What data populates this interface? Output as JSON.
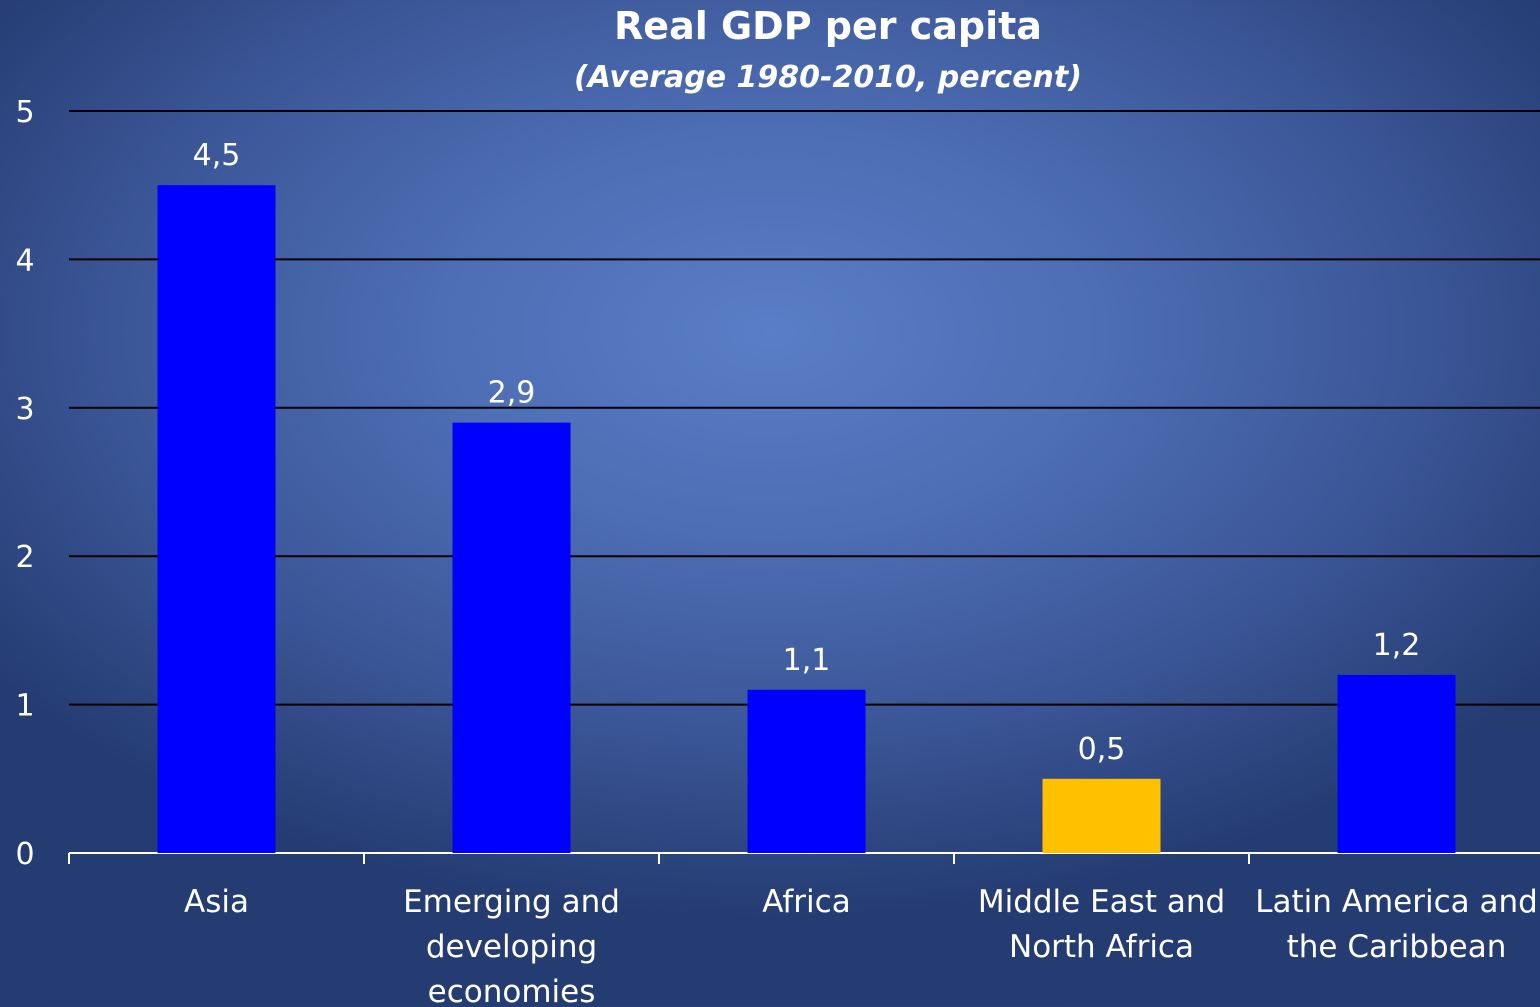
{
  "chart_data": {
    "type": "bar",
    "title": "Real GDP per capita",
    "subtitle": "(Average 1980-2010, percent)",
    "categories": [
      [
        "Asia"
      ],
      [
        "Emerging and",
        "developing",
        "economies"
      ],
      [
        "Africa"
      ],
      [
        "Middle East and",
        "North Africa"
      ],
      [
        "Latin America and",
        "the Caribbean"
      ]
    ],
    "values": [
      4.5,
      2.9,
      1.1,
      0.5,
      1.2
    ],
    "value_labels": [
      "4,5",
      "2,9",
      "1,1",
      "0,5",
      "1,2"
    ],
    "bar_colors": [
      "#0000ff",
      "#0000ff",
      "#0000ff",
      "#ffc000",
      "#0000ff"
    ],
    "ylim": [
      0,
      5
    ],
    "yticks": [
      "0",
      "1",
      "2",
      "3",
      "4",
      "5"
    ],
    "grid": true,
    "xlabel": "",
    "ylabel": ""
  }
}
